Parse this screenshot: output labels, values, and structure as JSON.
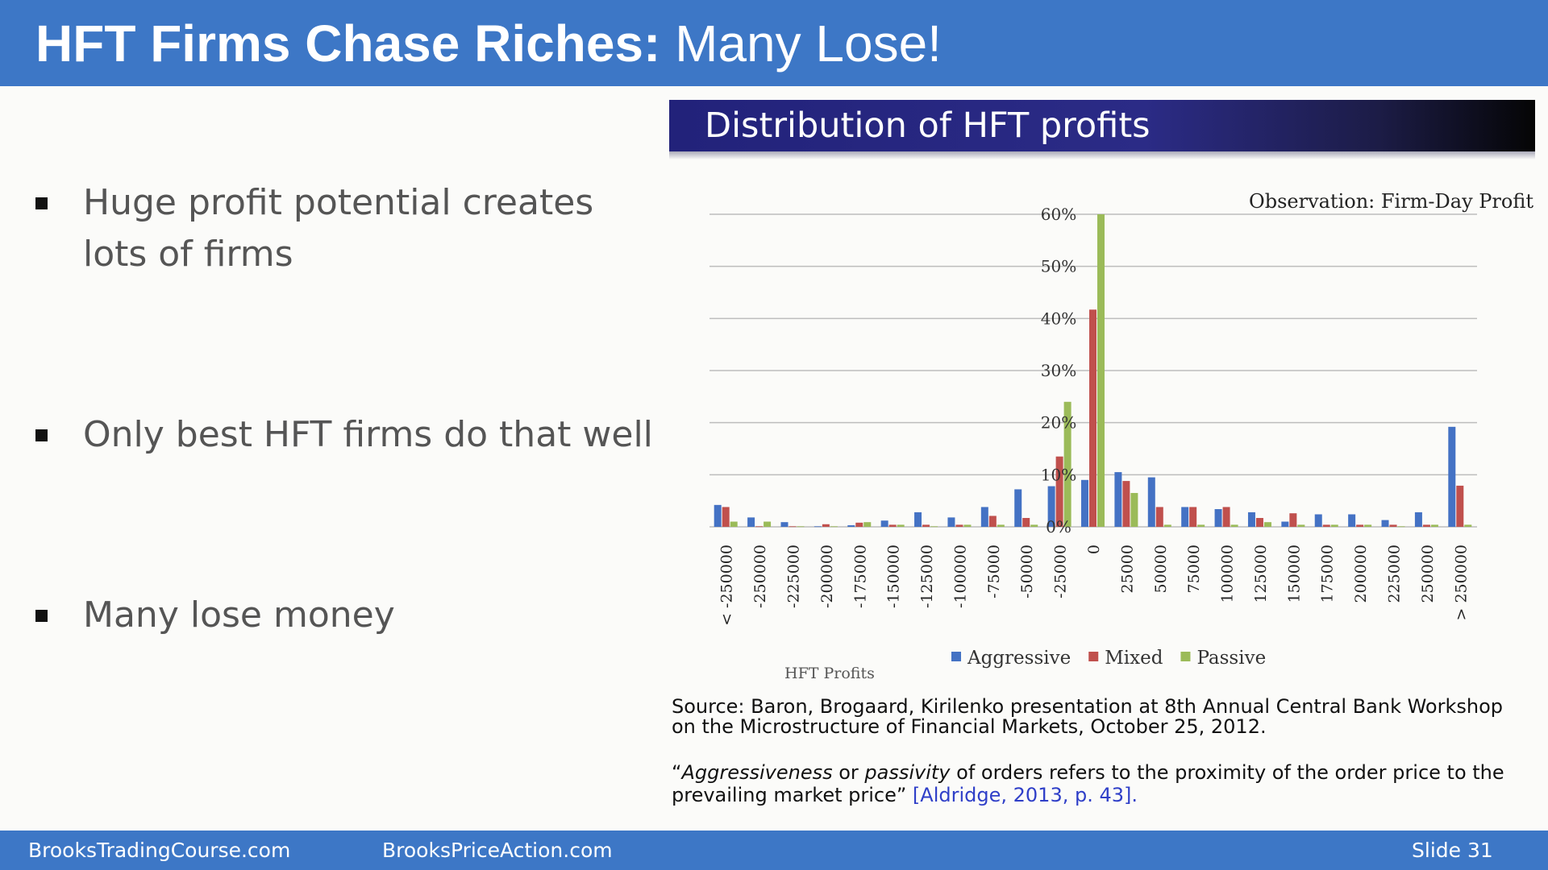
{
  "slide": {
    "title_bold": "HFT Firms Chase Riches:",
    "title_rest": " Many Lose!",
    "bullets": [
      {
        "line1": "Huge profit potential creates",
        "line2": "lots of firms"
      },
      {
        "line1": "Only best HFT firms do that well",
        "line2": ""
      },
      {
        "line1": "Many lose money",
        "line2": ""
      }
    ],
    "source": "Source:  Baron,  Brogaard,  Kirilenko  presentation at 8th  Annual  Central Bank Workshop on the Microstructure of Financial Markets, October 25, 2012.",
    "quote_open": "“",
    "quote_em1": "Aggressiveness",
    "quote_mid": " or ",
    "quote_em2": "passivity",
    "quote_rest": " of orders refers to the proximity of the order price to the prevailing market price” ",
    "quote_cite": "[Aldridge, 2013, p. 43]",
    "quote_end": ".",
    "footer": {
      "left": "BrooksTradingCourse.com",
      "center": "BrooksPriceAction.com",
      "right": "Slide  31"
    }
  },
  "chart_data": {
    "type": "bar",
    "header": "Distribution of HFT profits",
    "title": "Observation: Firm-Day Profit",
    "xlabel": "HFT Profits",
    "categories": [
      "< -250000",
      "-250000",
      "-225000",
      "-200000",
      "-175000",
      "-150000",
      "-125000",
      "-100000",
      "-75000",
      "-50000",
      "-25000",
      "0",
      "25000",
      "50000",
      "75000",
      "100000",
      "125000",
      "150000",
      "175000",
      "200000",
      "225000",
      "250000",
      "> 250000"
    ],
    "yticks": [
      "0%",
      "10%",
      "20%",
      "30%",
      "40%",
      "50%",
      "60%"
    ],
    "ylim": [
      0,
      60
    ],
    "grid": true,
    "legend_position": "bottom",
    "series": [
      {
        "name": "Aggressive",
        "color": "#4472c4",
        "values": [
          4.2,
          1.8,
          0.9,
          0.1,
          0.3,
          1.2,
          2.8,
          1.8,
          3.8,
          7.2,
          7.8,
          9.0,
          10.5,
          9.5,
          3.8,
          3.4,
          2.8,
          1.0,
          2.4,
          2.4,
          1.3,
          2.8,
          19.2
        ]
      },
      {
        "name": "Mixed",
        "color": "#c0504d",
        "values": [
          3.8,
          0.1,
          0.1,
          0.5,
          0.8,
          0.4,
          0.4,
          0.4,
          2.1,
          1.7,
          13.5,
          41.7,
          8.8,
          3.8,
          3.8,
          3.8,
          1.7,
          2.6,
          0.4,
          0.4,
          0.4,
          0.4,
          7.9
        ]
      },
      {
        "name": "Passive",
        "color": "#9bbb59",
        "values": [
          1.0,
          1.0,
          0.1,
          0.1,
          0.9,
          0.4,
          0.1,
          0.4,
          0.4,
          0.4,
          24.0,
          60.0,
          6.5,
          0.4,
          0.4,
          0.4,
          0.9,
          0.4,
          0.4,
          0.4,
          0.1,
          0.4,
          0.4
        ]
      }
    ]
  }
}
